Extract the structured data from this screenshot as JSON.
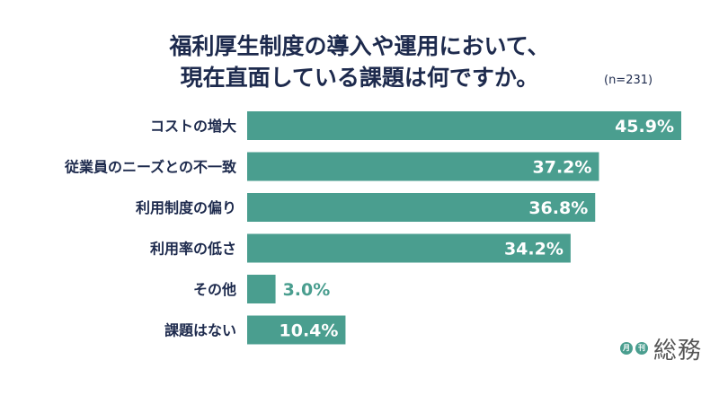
{
  "header": {
    "title_line1": "福利厚生制度の導入や運用において、",
    "title_line2": "現在直面している課題は何ですか。",
    "sample_size": "(n=231)"
  },
  "logo": {
    "mark1": "月",
    "mark2": "刊",
    "name": "総務"
  },
  "colors": {
    "bar": "#4a9e8f",
    "label": "#1d2a4d",
    "value_inside": "#ffffff",
    "value_outside": "#4a9e8f"
  },
  "chart_data": {
    "type": "bar",
    "orientation": "horizontal",
    "categories": [
      "コストの増大",
      "従業員のニーズとの不一致",
      "利用制度の偏り",
      "利用率の低さ",
      "その他",
      "課題はない"
    ],
    "values": [
      45.9,
      37.2,
      36.8,
      34.2,
      3.0,
      10.4
    ],
    "value_labels": [
      "45.9%",
      "37.2%",
      "36.8%",
      "34.2%",
      "3.0%",
      "10.4%"
    ],
    "unit": "%",
    "xlim": [
      0,
      45.9
    ],
    "grid": false,
    "legend": "none"
  }
}
